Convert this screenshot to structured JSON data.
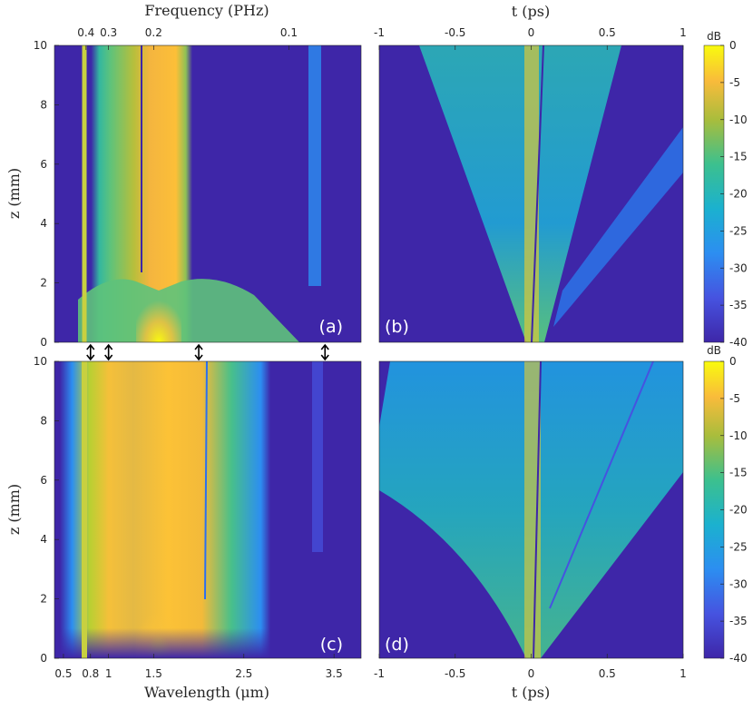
{
  "chart_data": [
    {
      "type": "heatmap",
      "panel": "(a)",
      "xlabel": "",
      "ylabel": "z (mm)",
      "top_axis_label": "Frequency (PHz)",
      "top_ticks": [
        "0.4",
        "0.3",
        "0.2",
        "0.1"
      ],
      "top_tick_wavelengths": [
        0.75,
        1.0,
        1.5,
        3.0
      ],
      "xlim": [
        0.4,
        3.8
      ],
      "ylim": [
        0,
        10
      ],
      "yticks": [
        "0",
        "2",
        "4",
        "6",
        "8",
        "10"
      ],
      "arrow_marker_wavelengths": [
        0.8,
        1.0,
        2.0,
        3.4
      ],
      "colorbar": {
        "label": "dB",
        "range": [
          -40,
          0
        ],
        "ticks": [
          "0",
          "-5",
          "-10",
          "-15",
          "-20",
          "-25",
          "-30",
          "-35",
          "-40"
        ]
      }
    },
    {
      "type": "heatmap",
      "panel": "(b)",
      "top_axis_label": "t (ps)",
      "top_ticks": [
        "-1",
        "-0.5",
        "0",
        "0.5",
        "1"
      ],
      "xlim": [
        -1,
        1
      ],
      "ylim": [
        0,
        10
      ]
    },
    {
      "type": "heatmap",
      "panel": "(c)",
      "xlabel": "Wavelength (μm)",
      "ylabel": "z (mm)",
      "xticks": [
        "0.5",
        "0.8",
        "1",
        "1.5",
        "2.5",
        "3.5"
      ],
      "xtick_values": [
        0.5,
        0.8,
        1.0,
        1.5,
        2.5,
        3.5
      ],
      "xlim": [
        0.4,
        3.8
      ],
      "ylim": [
        0,
        10
      ],
      "yticks": [
        "0",
        "2",
        "4",
        "6",
        "8",
        "10"
      ],
      "colorbar": {
        "label": "dB",
        "range": [
          -40,
          0
        ],
        "ticks": [
          "0",
          "-5",
          "-10",
          "-15",
          "-20",
          "-25",
          "-30",
          "-35",
          "-40"
        ]
      }
    },
    {
      "type": "heatmap",
      "panel": "(d)",
      "xlabel": "t (ps)",
      "xticks": [
        "-1",
        "-0.5",
        "0",
        "0.5",
        "1"
      ],
      "xlim": [
        -1,
        1
      ],
      "ylim": [
        0,
        10
      ]
    }
  ],
  "colors": {
    "low": "#3e26a8",
    "mid": "#19b2c5",
    "high": "#f9fb0e",
    "orange": "#fdb931"
  }
}
